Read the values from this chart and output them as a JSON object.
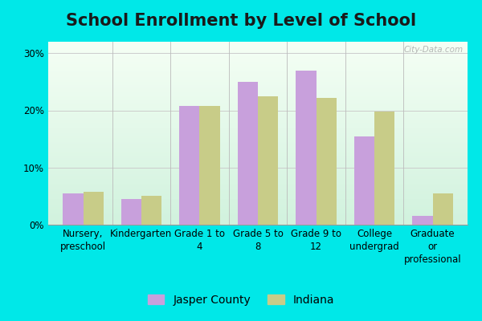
{
  "title": "School Enrollment by Level of School",
  "categories": [
    "Nursery,\npreschool",
    "Kindergarten",
    "Grade 1 to\n4",
    "Grade 5 to\n8",
    "Grade 9 to\n12",
    "College\nundergrad",
    "Graduate\nor\nprofessional"
  ],
  "jasper_values": [
    5.5,
    4.5,
    20.8,
    25.0,
    27.0,
    15.5,
    1.5
  ],
  "indiana_values": [
    5.8,
    5.0,
    20.8,
    22.5,
    22.2,
    19.8,
    5.5
  ],
  "jasper_color": "#c8a0dc",
  "indiana_color": "#c8cc88",
  "outer_bg": "#00e8e8",
  "ylim": [
    0,
    32
  ],
  "yticks": [
    0,
    10,
    20,
    30
  ],
  "yticklabels": [
    "0%",
    "10%",
    "20%",
    "30%"
  ],
  "title_fontsize": 15,
  "axis_fontsize": 8.5,
  "legend_fontsize": 10,
  "bar_width": 0.35,
  "watermark": "City-Data.com",
  "legend_jasper": "Jasper County",
  "legend_indiana": "Indiana",
  "separator_color": "#bbbbbb",
  "grid_color": "#cccccc"
}
